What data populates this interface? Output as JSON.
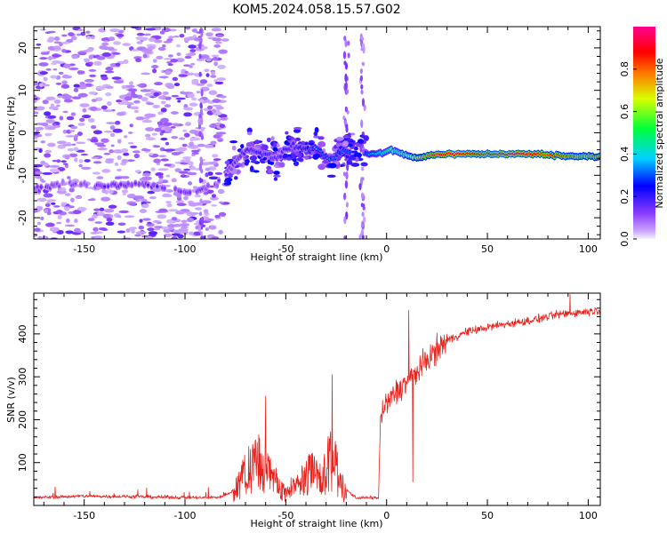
{
  "figure": {
    "title": "KOM5.2024.058.15.57.G02"
  },
  "colors": {
    "snr_line": "#e8231e",
    "frame": "#000000"
  },
  "chart_data": [
    {
      "type": "heatmap",
      "title": "KOM5.2024.058.15.57.G02",
      "xlabel": "Height of straight line (km)",
      "ylabel": "Frequency (Hz)",
      "xlim": [
        -175,
        106
      ],
      "ylim": [
        -25,
        25
      ],
      "xticks": [
        -150,
        -100,
        -50,
        0,
        50,
        100
      ],
      "yticks": [
        -20,
        -10,
        0,
        10,
        20
      ],
      "colorbar": {
        "label": "Normalized spectral amplitude",
        "range": [
          0,
          1
        ],
        "ticks": [
          0.0,
          0.2,
          0.4,
          0.6,
          0.8
        ],
        "colormap": "rainbow (purple-blue-cyan-green-yellow-red-magenta)"
      },
      "ridge": [
        {
          "x": -170,
          "y": -13,
          "amp": 0.15
        },
        {
          "x": -160,
          "y": -12,
          "amp": 0.1
        },
        {
          "x": -140,
          "y": -12.5,
          "amp": 0.15
        },
        {
          "x": -125,
          "y": -12,
          "amp": 0.15
        },
        {
          "x": -110,
          "y": -13,
          "amp": 0.15
        },
        {
          "x": -97,
          "y": -14,
          "amp": 0.15
        },
        {
          "x": -85,
          "y": -12.5,
          "amp": 0.12
        },
        {
          "x": -75,
          "y": -7,
          "amp": 0.15
        },
        {
          "x": -70,
          "y": -4,
          "amp": 0.2
        },
        {
          "x": -63,
          "y": -4.5,
          "amp": 0.2
        },
        {
          "x": -55,
          "y": -6,
          "amp": 0.18
        },
        {
          "x": -47,
          "y": -3,
          "amp": 0.2
        },
        {
          "x": -40,
          "y": -4,
          "amp": 0.25
        },
        {
          "x": -35,
          "y": -3.5,
          "amp": 0.35
        },
        {
          "x": -28,
          "y": -6.5,
          "amp": 0.3
        },
        {
          "x": -21,
          "y": -4,
          "amp": 0.3
        },
        {
          "x": -10,
          "y": -5,
          "amp": 0.3
        },
        {
          "x": -3,
          "y": -5,
          "amp": 0.45
        },
        {
          "x": 2,
          "y": -4,
          "amp": 0.55
        },
        {
          "x": 8,
          "y": -5,
          "amp": 0.55
        },
        {
          "x": 15,
          "y": -6,
          "amp": 0.7
        },
        {
          "x": 25,
          "y": -5,
          "amp": 0.85
        },
        {
          "x": 35,
          "y": -5,
          "amp": 0.9
        },
        {
          "x": 45,
          "y": -5,
          "amp": 0.85
        },
        {
          "x": 60,
          "y": -5,
          "amp": 0.9
        },
        {
          "x": 75,
          "y": -5,
          "amp": 0.85
        },
        {
          "x": 90,
          "y": -5.5,
          "amp": 0.8
        },
        {
          "x": 105,
          "y": -5.5,
          "amp": 0.75
        }
      ]
    },
    {
      "type": "line",
      "xlabel": "Height of straight line (km)",
      "ylabel": "SNR (v/v)",
      "xlim": [
        -175,
        106
      ],
      "ylim": [
        0,
        495
      ],
      "xticks": [
        -150,
        -100,
        -50,
        0,
        50,
        100
      ],
      "yticks": [
        100,
        200,
        300,
        400
      ],
      "series": [
        {
          "color": "#e8231e",
          "envelope": [
            {
              "x": -175,
              "y": 18
            },
            {
              "x": -150,
              "y": 22
            },
            {
              "x": -120,
              "y": 20
            },
            {
              "x": -90,
              "y": 18
            },
            {
              "x": -82,
              "y": 20
            },
            {
              "x": -76,
              "y": 35
            },
            {
              "x": -70,
              "y": 95
            },
            {
              "x": -65,
              "y": 130
            },
            {
              "x": -60,
              "y": 110
            },
            {
              "x": -55,
              "y": 70
            },
            {
              "x": -50,
              "y": 40
            },
            {
              "x": -45,
              "y": 55
            },
            {
              "x": -38,
              "y": 95
            },
            {
              "x": -32,
              "y": 80
            },
            {
              "x": -28,
              "y": 130
            },
            {
              "x": -25,
              "y": 110
            },
            {
              "x": -21,
              "y": 40
            },
            {
              "x": -15,
              "y": 18
            },
            {
              "x": -4,
              "y": 18
            },
            {
              "x": -3,
              "y": 210
            },
            {
              "x": 2,
              "y": 250
            },
            {
              "x": 8,
              "y": 280
            },
            {
              "x": 15,
              "y": 310
            },
            {
              "x": 20,
              "y": 340
            },
            {
              "x": 30,
              "y": 385
            },
            {
              "x": 40,
              "y": 405
            },
            {
              "x": 55,
              "y": 420
            },
            {
              "x": 70,
              "y": 430
            },
            {
              "x": 85,
              "y": 445
            },
            {
              "x": 95,
              "y": 450
            },
            {
              "x": 106,
              "y": 455
            }
          ],
          "spikes": [
            {
              "x": -60,
              "y": 255
            },
            {
              "x": -27,
              "y": 305
            },
            {
              "x": 11,
              "y": 455
            },
            {
              "x": 13,
              "y": 55
            },
            {
              "x": 91,
              "y": 492
            }
          ]
        }
      ]
    }
  ]
}
